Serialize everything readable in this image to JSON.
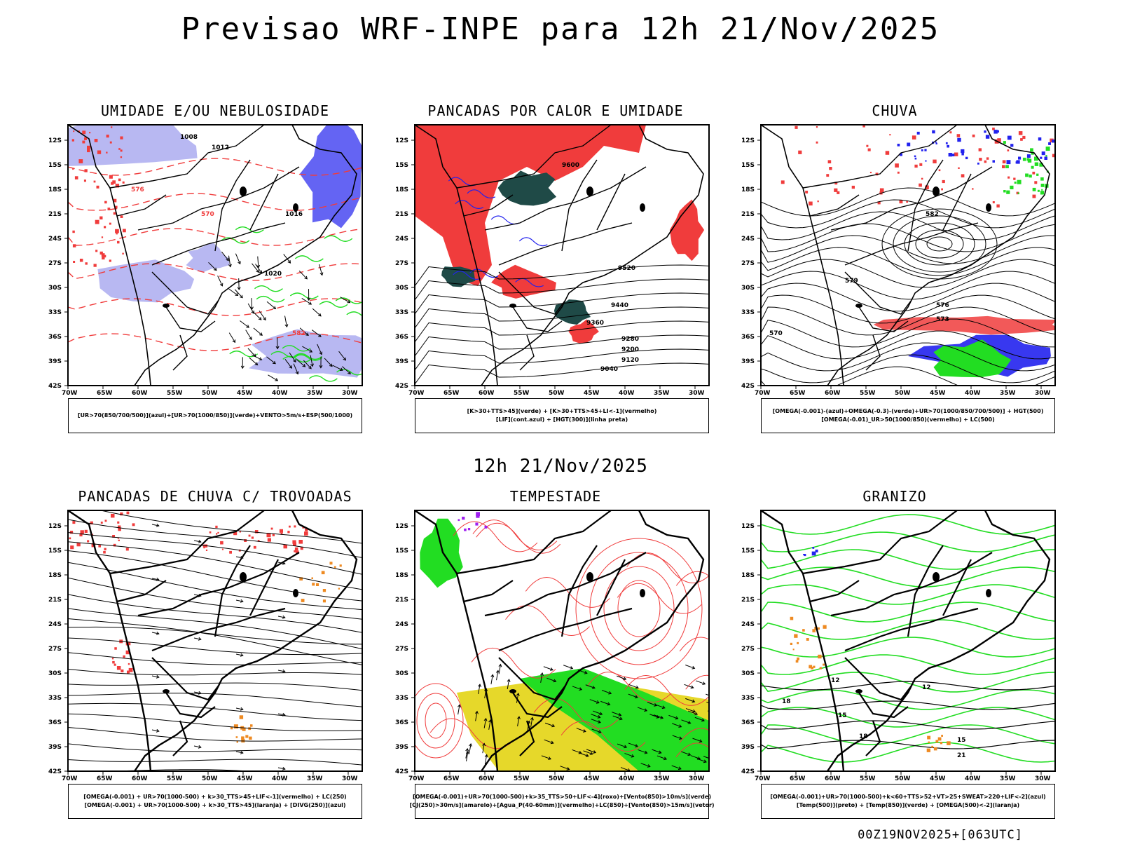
{
  "title": "Previsao WRF-INPE  para 12h 21/Nov/2025",
  "mid_title": "12h 21/Nov/2025",
  "footer": "00Z19NOV2025+[063UTC]",
  "axes": {
    "lat_labels": [
      "12S",
      "15S",
      "18S",
      "21S",
      "24S",
      "27S",
      "30S",
      "33S",
      "36S",
      "39S",
      "42S"
    ],
    "lon_labels": [
      "70W",
      "65W",
      "60W",
      "55W",
      "50W",
      "45W",
      "40W",
      "35W",
      "30W"
    ]
  },
  "colors": {
    "red": "#f03c3c",
    "green": "#22dd22",
    "blue": "#2222ee",
    "lavender": "#b8b8f2",
    "dark_teal": "#1f4a47",
    "yellow": "#e6d82a",
    "orange": "#ee8a22",
    "purple": "#a020f0"
  },
  "panels": [
    {
      "title": "UMIDADE E/OU NEBULOSIDADE",
      "legend": [
        "[UR>70(850/700/500)](azul)+[UR>70(1000/850)](verde)+VENTO>5m/s+ESP(500/1000)"
      ],
      "contour_labels": [
        "1008",
        "1012",
        "1016",
        "1020",
        "570",
        "576",
        "582"
      ]
    },
    {
      "title": "PANCADAS POR CALOR E UMIDADE",
      "legend": [
        "[K>30+TTS>45](verde) + [K>30+TTS>45+LI<-1](vermelho)",
        "[LIF](cont.azul) + [HGT(300)](linha preta)"
      ],
      "contour_labels": [
        "9600",
        "9520",
        "9440",
        "9360",
        "9280",
        "9200",
        "9120",
        "9040"
      ]
    },
    {
      "title": "CHUVA",
      "legend": [
        "[OMEGA(-0.001)-(azul)+OMEGA(-0.3)-(verde)+UR>70(1000/850/700/500)] + HGT(500)",
        "[OMEGA(-0.01)_UR>50(1000/850)(vermelho) + LC(500)"
      ],
      "contour_labels": [
        "570",
        "573",
        "576",
        "579",
        "582"
      ]
    },
    {
      "title": "PANCADAS DE CHUVA C/ TROVOADAS",
      "legend": [
        "[OMEGA(-0.001) + UR>70(1000-500) + k>30_TTS>45+LIF<-1](vermelho) + LC(250)",
        "[OMEGA(-0.001) + UR>70(1000-500) + k>30_TTS>45](laranja) + [DIVG(250)](azul)"
      ],
      "contour_labels": []
    },
    {
      "title": "TEMPESTADE",
      "legend": [
        "[OMEGA(-0.001)+UR>70(1000-500)+k>35_TTS>50+LIF<-4](roxo)+[Vento(850)>10m/s](verde)",
        "[CJ(250)>30m/s](amarelo)+[Agua_P(40-60mm)](vermelho)+LC(850)+[Vento(850)>15m/s](vetor)"
      ],
      "contour_labels": []
    },
    {
      "title": "GRANIZO",
      "legend": [
        "[OMEGA(-0.001)+UR>70(1000-500)+k<60+TTS>52+VT>25+SWEAT>220+LIF<-2](azul)",
        "[Temp(500)](preto) + [Temp(850)](verde) + [OMEGA(500)<-2](laranja)"
      ],
      "contour_labels": [
        "12",
        "15",
        "18",
        "21"
      ]
    }
  ]
}
